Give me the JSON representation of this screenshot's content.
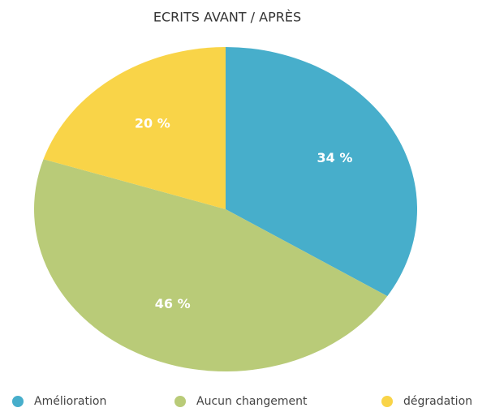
{
  "chart_data": {
    "type": "pie",
    "title": "ECRITS AVANT / APRÈS",
    "categories": [
      "Amélioration",
      "Aucun changement",
      "dégradation"
    ],
    "values": [
      34,
      46,
      20
    ],
    "value_labels": [
      "34 %",
      "46 %",
      "20 %"
    ],
    "colors": [
      "#47aecb",
      "#b9cb78",
      "#f9d448"
    ],
    "legend": "bottom"
  }
}
